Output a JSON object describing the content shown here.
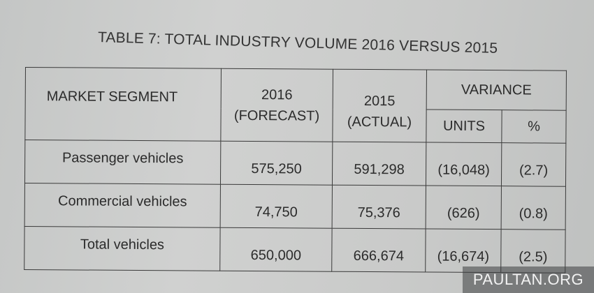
{
  "title": "TABLE 7: TOTAL INDUSTRY VOLUME 2016 VERSUS 2015",
  "headers": {
    "segment": "MARKET SEGMENT",
    "y2016_line1": "2016",
    "y2016_line2": "(FORECAST)",
    "y2015_line1": "2015",
    "y2015_line2": "(ACTUAL)",
    "variance": "VARIANCE",
    "units": "UNITS",
    "percent": "%"
  },
  "rows": [
    {
      "segment": "Passenger vehicles",
      "forecast_2016": "575,250",
      "actual_2015": "591,298",
      "variance_units": "(16,048)",
      "variance_pct": "(2.7)"
    },
    {
      "segment": "Commercial vehicles",
      "forecast_2016": "74,750",
      "actual_2015": "75,376",
      "variance_units": "(626)",
      "variance_pct": "(0.8)"
    },
    {
      "segment": "Total vehicles",
      "forecast_2016": "650,000",
      "actual_2015": "666,674",
      "variance_units": "(16,674)",
      "variance_pct": "(2.5)"
    }
  ],
  "watermark": "PAULTAN.ORG"
}
